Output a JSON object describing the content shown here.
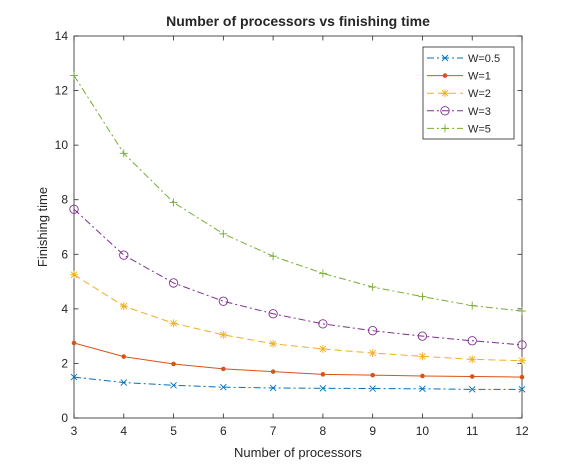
{
  "chart_data": {
    "type": "line",
    "title": "Number of processors vs finishing time",
    "xlabel": "Number of processors",
    "ylabel": "Finishing time",
    "xlim": [
      3,
      12
    ],
    "ylim": [
      0,
      14
    ],
    "x": [
      3,
      4,
      5,
      6,
      7,
      8,
      9,
      10,
      11,
      12
    ],
    "xticks": [
      "3",
      "4",
      "5",
      "6",
      "7",
      "8",
      "9",
      "10",
      "11",
      "12"
    ],
    "yticks": [
      "0",
      "2",
      "4",
      "6",
      "8",
      "10",
      "12",
      "14"
    ],
    "grid": false,
    "legend_position": "top-right",
    "series": [
      {
        "name": "W=0.5",
        "color": "#0072BD",
        "line_style": "dash-dot",
        "marker": "x",
        "values": [
          1.5,
          1.3,
          1.2,
          1.13,
          1.1,
          1.09,
          1.08,
          1.07,
          1.05,
          1.05
        ]
      },
      {
        "name": "W=1",
        "color": "#D95319",
        "line_style": "solid",
        "marker": "dot",
        "values": [
          2.75,
          2.25,
          1.98,
          1.8,
          1.7,
          1.6,
          1.57,
          1.54,
          1.52,
          1.5
        ]
      },
      {
        "name": "W=2",
        "color": "#EDB120",
        "line_style": "dashed",
        "marker": "asterisk",
        "values": [
          5.25,
          4.1,
          3.47,
          3.05,
          2.72,
          2.53,
          2.38,
          2.26,
          2.15,
          2.1
        ]
      },
      {
        "name": "W=3",
        "color": "#7E2F8E",
        "line_style": "dash-dot",
        "marker": "circle",
        "values": [
          7.65,
          5.97,
          4.95,
          4.28,
          3.82,
          3.45,
          3.2,
          3.0,
          2.83,
          2.68
        ]
      },
      {
        "name": "W=5",
        "color": "#77AC30",
        "line_style": "dash-dot",
        "marker": "plus",
        "values": [
          12.55,
          9.7,
          7.9,
          6.75,
          5.93,
          5.3,
          4.8,
          4.45,
          4.12,
          3.92
        ]
      }
    ]
  }
}
